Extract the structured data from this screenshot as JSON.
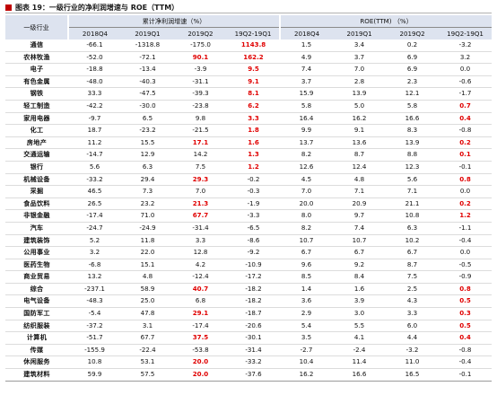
{
  "caption": "图表 19：一级行业的净利润增速与 ROE（TTM）",
  "header": {
    "industry": "一级行业",
    "group1": "累计净利润增速（%）",
    "group2": "ROE(TTM) （%）",
    "periods1": [
      "2018Q4",
      "2019Q1",
      "2019Q2",
      "19Q2-19Q1"
    ],
    "periods2": [
      "2018Q4",
      "2019Q1",
      "2019Q2",
      "19Q2-19Q1"
    ]
  },
  "colors": {
    "highlight": "#e00000",
    "header_bg": "#dde3ef",
    "caption_tag": "#c00000"
  },
  "rows": [
    {
      "name": "通信",
      "v": [
        "-66.1",
        "-1318.8",
        "-175.0",
        "1143.8",
        "1.5",
        "3.4",
        "0.2",
        "-3.2"
      ],
      "hl": [
        3
      ]
    },
    {
      "name": "农林牧渔",
      "v": [
        "-52.0",
        "-72.1",
        "90.1",
        "162.2",
        "4.9",
        "3.7",
        "6.9",
        "3.2"
      ],
      "hl": [
        2,
        3
      ]
    },
    {
      "name": "电子",
      "v": [
        "-18.8",
        "-13.4",
        "-3.9",
        "9.5",
        "7.4",
        "7.0",
        "6.9",
        "0.0"
      ],
      "hl": [
        3
      ]
    },
    {
      "name": "有色金属",
      "v": [
        "-48.0",
        "-40.3",
        "-31.1",
        "9.1",
        "3.7",
        "2.8",
        "2.3",
        "-0.6"
      ],
      "hl": [
        3
      ]
    },
    {
      "name": "钢铁",
      "v": [
        "33.3",
        "-47.5",
        "-39.3",
        "8.1",
        "15.9",
        "13.9",
        "12.1",
        "-1.7"
      ],
      "hl": [
        3
      ]
    },
    {
      "name": "轻工制造",
      "v": [
        "-42.2",
        "-30.0",
        "-23.8",
        "6.2",
        "5.8",
        "5.0",
        "5.8",
        "0.7"
      ],
      "hl": [
        3,
        7
      ]
    },
    {
      "name": "家用电器",
      "v": [
        "-9.7",
        "6.5",
        "9.8",
        "3.3",
        "16.4",
        "16.2",
        "16.6",
        "0.4"
      ],
      "hl": [
        3,
        7
      ]
    },
    {
      "name": "化工",
      "v": [
        "18.7",
        "-23.2",
        "-21.5",
        "1.8",
        "9.9",
        "9.1",
        "8.3",
        "-0.8"
      ],
      "hl": [
        3
      ]
    },
    {
      "name": "房地产",
      "v": [
        "11.2",
        "15.5",
        "17.1",
        "1.6",
        "13.7",
        "13.6",
        "13.9",
        "0.2"
      ],
      "hl": [
        2,
        3,
        7
      ]
    },
    {
      "name": "交通运输",
      "v": [
        "-14.7",
        "12.9",
        "14.2",
        "1.3",
        "8.2",
        "8.7",
        "8.8",
        "0.1"
      ],
      "hl": [
        3,
        7
      ]
    },
    {
      "name": "银行",
      "v": [
        "5.6",
        "6.3",
        "7.5",
        "1.2",
        "12.6",
        "12.4",
        "12.3",
        "-0.1"
      ],
      "hl": [
        3
      ]
    },
    {
      "name": "机械设备",
      "v": [
        "-33.2",
        "29.4",
        "29.3",
        "-0.2",
        "4.5",
        "4.8",
        "5.6",
        "0.8"
      ],
      "hl": [
        2,
        7
      ]
    },
    {
      "name": "采掘",
      "v": [
        "46.5",
        "7.3",
        "7.0",
        "-0.3",
        "7.0",
        "7.1",
        "7.1",
        "0.0"
      ],
      "hl": []
    },
    {
      "name": "食品饮料",
      "v": [
        "26.5",
        "23.2",
        "21.3",
        "-1.9",
        "20.0",
        "20.9",
        "21.1",
        "0.2"
      ],
      "hl": [
        2,
        7
      ]
    },
    {
      "name": "非银金融",
      "v": [
        "-17.4",
        "71.0",
        "67.7",
        "-3.3",
        "8.0",
        "9.7",
        "10.8",
        "1.2"
      ],
      "hl": [
        2,
        7
      ]
    },
    {
      "name": "汽车",
      "v": [
        "-24.7",
        "-24.9",
        "-31.4",
        "-6.5",
        "8.2",
        "7.4",
        "6.3",
        "-1.1"
      ],
      "hl": []
    },
    {
      "name": "建筑装饰",
      "v": [
        "5.2",
        "11.8",
        "3.3",
        "-8.6",
        "10.7",
        "10.7",
        "10.2",
        "-0.4"
      ],
      "hl": []
    },
    {
      "name": "公用事业",
      "v": [
        "3.2",
        "22.0",
        "12.8",
        "-9.2",
        "6.7",
        "6.7",
        "6.7",
        "0.0"
      ],
      "hl": []
    },
    {
      "name": "医药生物",
      "v": [
        "-6.8",
        "15.1",
        "4.2",
        "-10.9",
        "9.6",
        "9.2",
        "8.7",
        "-0.5"
      ],
      "hl": []
    },
    {
      "name": "商业贸易",
      "v": [
        "13.2",
        "4.8",
        "-12.4",
        "-17.2",
        "8.5",
        "8.4",
        "7.5",
        "-0.9"
      ],
      "hl": []
    },
    {
      "name": "综合",
      "v": [
        "-237.1",
        "58.9",
        "40.7",
        "-18.2",
        "1.4",
        "1.6",
        "2.5",
        "0.8"
      ],
      "hl": [
        2,
        7
      ]
    },
    {
      "name": "电气设备",
      "v": [
        "-48.3",
        "25.0",
        "6.8",
        "-18.2",
        "3.6",
        "3.9",
        "4.3",
        "0.5"
      ],
      "hl": [
        7
      ]
    },
    {
      "name": "国防军工",
      "v": [
        "-5.4",
        "47.8",
        "29.1",
        "-18.7",
        "2.9",
        "3.0",
        "3.3",
        "0.3"
      ],
      "hl": [
        2,
        7
      ]
    },
    {
      "name": "纺织服装",
      "v": [
        "-37.2",
        "3.1",
        "-17.4",
        "-20.6",
        "5.4",
        "5.5",
        "6.0",
        "0.5"
      ],
      "hl": [
        7
      ]
    },
    {
      "name": "计算机",
      "v": [
        "-51.7",
        "67.7",
        "37.5",
        "-30.1",
        "3.5",
        "4.1",
        "4.4",
        "0.4"
      ],
      "hl": [
        2,
        7
      ]
    },
    {
      "name": "传媒",
      "v": [
        "-155.9",
        "-22.4",
        "-53.8",
        "-31.4",
        "-2.7",
        "-2.4",
        "-3.2",
        "-0.8"
      ],
      "hl": []
    },
    {
      "name": "休闲服务",
      "v": [
        "10.8",
        "53.1",
        "20.0",
        "-33.2",
        "10.4",
        "11.4",
        "11.0",
        "-0.4"
      ],
      "hl": [
        2
      ]
    },
    {
      "name": "建筑材料",
      "v": [
        "59.9",
        "57.5",
        "20.0",
        "-37.6",
        "16.2",
        "16.6",
        "16.5",
        "-0.1"
      ],
      "hl": [
        2
      ]
    }
  ]
}
